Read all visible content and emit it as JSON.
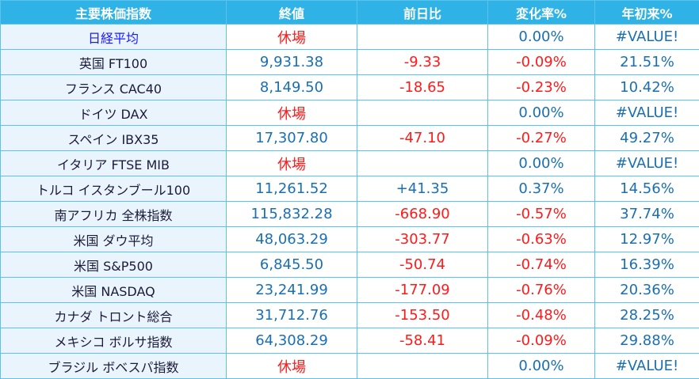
{
  "table": {
    "header": [
      "主要株価指数",
      "終値",
      "前日比",
      "変化率%",
      "年初来%"
    ],
    "rows": [
      [
        "日経平均",
        "休場",
        null,
        "0.00%",
        "#VALUE!"
      ],
      [
        "英国 FT100",
        "9,931.38",
        "-9.33",
        "-0.09%",
        "21.51%"
      ],
      [
        "フランス CAC40",
        "8,149.50",
        "-18.65",
        "-0.23%",
        "10.42%"
      ],
      [
        "ドイツ DAX",
        "休場",
        null,
        "0.00%",
        "#VALUE!"
      ],
      [
        "スペイン IBX35",
        "17,307.80",
        "-47.10",
        "-0.27%",
        "49.27%"
      ],
      [
        "イタリア FTSE MIB",
        "休場",
        null,
        "0.00%",
        "#VALUE!"
      ],
      [
        "トルコ イスタンブール100",
        "11,261.52",
        "+41.35",
        "0.37%",
        "14.56%"
      ],
      [
        "南アフリカ 全株指数",
        "115,832.28",
        "-668.90",
        "-0.57%",
        "37.74%"
      ],
      [
        "米国 ダウ平均",
        "48,063.29",
        "-303.77",
        "-0.63%",
        "12.97%"
      ],
      [
        "米国 S&P500",
        "6,845.50",
        "-50.74",
        "-0.74%",
        "16.39%"
      ],
      [
        "米国 NASDAQ",
        "23,241.99",
        "-177.09",
        "-0.76%",
        "20.36%"
      ],
      [
        "カナダ トロント総合",
        "31,712.76",
        "-153.50",
        "-0.48%",
        "28.25%"
      ],
      [
        "メキシコ ボルサ指数",
        "64,308.29",
        "-58.41",
        "-0.09%",
        "29.88%"
      ],
      [
        "ブラジル ボベスパ指数",
        "休場",
        null,
        "0.00%",
        "#VALUE!"
      ]
    ]
  }
}
